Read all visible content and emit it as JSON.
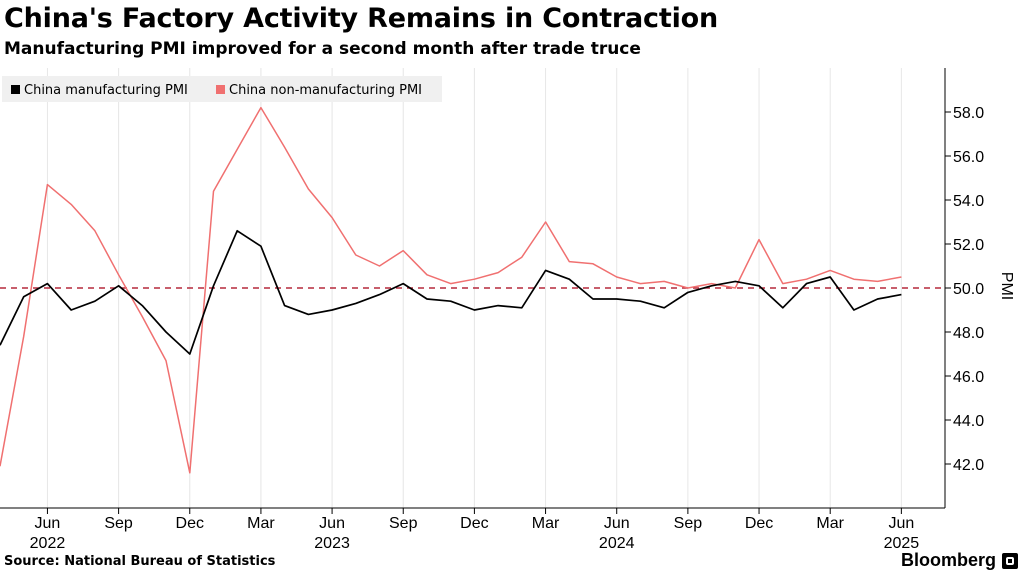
{
  "title": "China's Factory Activity Remains in Contraction",
  "subtitle": "Manufacturing PMI improved for a second month after trade truce",
  "source": "Source: National Bureau of Statistics",
  "brand": "Bloomberg",
  "chart_data": {
    "type": "line",
    "ylabel": "PMI",
    "ylim": [
      40.0,
      60.0
    ],
    "yticks": [
      "42.0",
      "44.0",
      "46.0",
      "48.0",
      "50.0",
      "52.0",
      "54.0",
      "56.0",
      "58.0"
    ],
    "reference_line": {
      "value": 50.0,
      "style": "dashed",
      "color": "#b5293c"
    },
    "x": [
      "2022-04",
      "2022-05",
      "2022-06",
      "2022-07",
      "2022-08",
      "2022-09",
      "2022-10",
      "2022-11",
      "2022-12",
      "2023-01",
      "2023-02",
      "2023-03",
      "2023-04",
      "2023-05",
      "2023-06",
      "2023-07",
      "2023-08",
      "2023-09",
      "2023-10",
      "2023-11",
      "2023-12",
      "2024-01",
      "2024-02",
      "2024-03",
      "2024-04",
      "2024-05",
      "2024-06",
      "2024-07",
      "2024-08",
      "2024-09",
      "2024-10",
      "2024-11",
      "2024-12",
      "2025-01",
      "2025-02",
      "2025-03",
      "2025-04",
      "2025-05",
      "2025-06"
    ],
    "month_ticks": [
      "Jun",
      "Sep",
      "Dec",
      "Mar",
      "Jun",
      "Sep",
      "Dec",
      "Mar",
      "Jun",
      "Sep",
      "Dec",
      "Mar",
      "Jun"
    ],
    "year_labels": [
      "2022",
      "2023",
      "2024",
      "2025"
    ],
    "legend_position": "top-left",
    "series": [
      {
        "name": "China manufacturing PMI",
        "color": "#000000",
        "values": [
          47.4,
          49.6,
          50.2,
          49.0,
          49.4,
          50.1,
          49.2,
          48.0,
          47.0,
          50.1,
          52.6,
          51.9,
          49.2,
          48.8,
          49.0,
          49.3,
          49.7,
          50.2,
          49.5,
          49.4,
          49.0,
          49.2,
          49.1,
          50.8,
          50.4,
          49.5,
          49.5,
          49.4,
          49.1,
          49.8,
          50.1,
          50.3,
          50.1,
          49.1,
          50.2,
          50.5,
          49.0,
          49.5,
          49.7
        ]
      },
      {
        "name": "China non-manufacturing PMI",
        "color": "#f07070",
        "values": [
          41.9,
          47.8,
          54.7,
          53.8,
          52.6,
          50.6,
          48.7,
          46.7,
          41.6,
          54.4,
          56.3,
          58.2,
          56.4,
          54.5,
          53.2,
          51.5,
          51.0,
          51.7,
          50.6,
          50.2,
          50.4,
          50.7,
          51.4,
          53.0,
          51.2,
          51.1,
          50.5,
          50.2,
          50.3,
          50.0,
          50.2,
          50.0,
          52.2,
          50.2,
          50.4,
          50.8,
          50.4,
          50.3,
          50.5
        ]
      }
    ]
  }
}
